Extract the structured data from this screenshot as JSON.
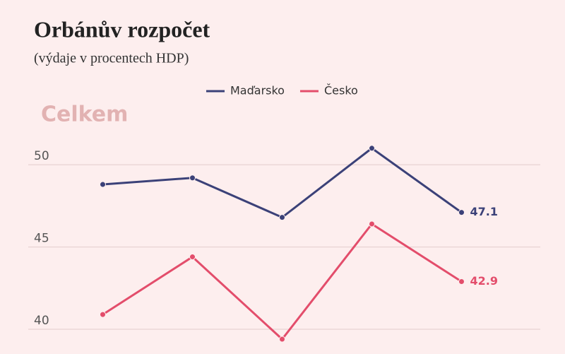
{
  "chart_data": {
    "type": "line",
    "title": "Orbánův rozpočet",
    "subtitle": "(výdaje v procentech HDP)",
    "annotation": "Celkem",
    "categories": [
      null,
      null,
      null,
      null,
      null
    ],
    "series": [
      {
        "name": "Maďarsko",
        "color": "#3b4178",
        "values": [
          48.8,
          49.2,
          46.8,
          51.0,
          47.1
        ]
      },
      {
        "name": "Česko",
        "color": "#e34d6b",
        "values": [
          40.9,
          44.4,
          39.4,
          46.4,
          42.9
        ]
      }
    ],
    "ylim": [
      38.5,
      52
    ],
    "yticks": [
      40,
      45,
      50
    ],
    "grid": true
  }
}
